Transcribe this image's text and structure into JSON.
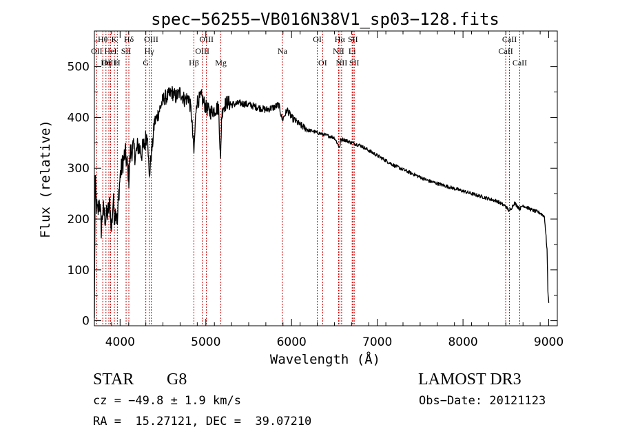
{
  "chart_data": {
    "type": "line",
    "title": "spec−56255−VB016N38V1_sp03−128.fits",
    "xlabel": "Wavelength (Å)",
    "ylabel": "Flux (relative)",
    "xlim": [
      3700,
      9100
    ],
    "ylim": [
      -10,
      570
    ],
    "xticks": [
      4000,
      5000,
      6000,
      7000,
      8000,
      9000
    ],
    "yticks": [
      0,
      100,
      200,
      300,
      400,
      500
    ],
    "grid": false,
    "series": [
      {
        "name": "spectrum",
        "x": [
          3700,
          3710,
          3720,
          3740,
          3760,
          3780,
          3800,
          3830,
          3860,
          3880,
          3900,
          3920,
          3935,
          3950,
          3968,
          3985,
          4000,
          4030,
          4060,
          4090,
          4102,
          4120,
          4150,
          4180,
          4210,
          4250,
          4290,
          4320,
          4340,
          4360,
          4380,
          4400,
          4430,
          4460,
          4490,
          4520,
          4550,
          4600,
          4650,
          4700,
          4750,
          4800,
          4830,
          4861,
          4890,
          4950,
          5000,
          5050,
          5100,
          5150,
          5172,
          5183,
          5200,
          5250,
          5300,
          5400,
          5500,
          5600,
          5700,
          5800,
          5850,
          5893,
          5950,
          6000,
          6100,
          6200,
          6300,
          6400,
          6500,
          6563,
          6570,
          6600,
          6700,
          6800,
          7000,
          7200,
          7400,
          7600,
          7800,
          8000,
          8200,
          8400,
          8498,
          8542,
          8600,
          8662,
          8700,
          8800,
          8900,
          8950,
          8980,
          8990,
          9000
        ],
        "y": [
          5,
          280,
          230,
          210,
          240,
          180,
          220,
          200,
          215,
          230,
          180,
          240,
          200,
          225,
          190,
          250,
          285,
          310,
          330,
          300,
          280,
          330,
          340,
          325,
          345,
          330,
          350,
          370,
          280,
          320,
          350,
          390,
          400,
          415,
          430,
          440,
          440,
          450,
          440,
          450,
          435,
          440,
          410,
          330,
          430,
          440,
          420,
          410,
          415,
          420,
          310,
          400,
          420,
          430,
          425,
          428,
          425,
          420,
          415,
          420,
          425,
          395,
          415,
          400,
          385,
          375,
          370,
          365,
          360,
          340,
          355,
          357,
          350,
          345,
          325,
          305,
          290,
          275,
          265,
          255,
          245,
          235,
          225,
          215,
          232,
          220,
          227,
          218,
          212,
          205,
          140,
          60,
          35
        ]
      }
    ],
    "line_markers": [
      {
        "wl": 3727,
        "label": "OII",
        "row": 1
      },
      {
        "wl": 3798,
        "label": "Hθ",
        "row": 0
      },
      {
        "wl": 3835,
        "label": "Hη",
        "row": 2
      },
      {
        "wl": 3869,
        "label": "OIII",
        "row": 2
      },
      {
        "wl": 3889,
        "label": "HeI",
        "row": 1
      },
      {
        "wl": 3933,
        "label": "K",
        "row": 0
      },
      {
        "wl": 3968,
        "label": "H",
        "row": 2
      },
      {
        "wl": 4070,
        "label": "SII",
        "row": 1
      },
      {
        "wl": 4102,
        "label": "Hδ",
        "row": 0
      },
      {
        "wl": 4300,
        "label": "G",
        "row": 2
      },
      {
        "wl": 4340,
        "label": "Hγ",
        "row": 1
      },
      {
        "wl": 4363,
        "label": "OIII",
        "row": 0
      },
      {
        "wl": 4861,
        "label": "Hβ",
        "row": 2
      },
      {
        "wl": 4959,
        "label": "OIII",
        "row": 1
      },
      {
        "wl": 5007,
        "label": "OIII",
        "row": 0
      },
      {
        "wl": 5175,
        "label": "Mg",
        "row": 2
      },
      {
        "wl": 5893,
        "label": "Na",
        "row": 1
      },
      {
        "wl": 6300,
        "label": "OI",
        "row": 0
      },
      {
        "wl": 6363,
        "label": "OI",
        "row": 2
      },
      {
        "wl": 6548,
        "label": "NII",
        "row": 1
      },
      {
        "wl": 6563,
        "label": "Hα",
        "row": 0
      },
      {
        "wl": 6584,
        "label": "NII",
        "row": 2
      },
      {
        "wl": 6707,
        "label": "Li",
        "row": 1
      },
      {
        "wl": 6716,
        "label": "SII",
        "row": 0
      },
      {
        "wl": 6731,
        "label": "SII",
        "row": 2
      },
      {
        "wl": 8498,
        "label": "CaII",
        "row": 1
      },
      {
        "wl": 8542,
        "label": "CaII",
        "row": 0
      },
      {
        "wl": 8662,
        "label": "CaII",
        "row": 2
      }
    ]
  },
  "info": {
    "object_class": "STAR",
    "subclass": "G8",
    "survey": "LAMOST DR3",
    "redshift": "cz = −49.8 ± 1.9 km/s",
    "obs_date": "Obs−Date: 20121123",
    "coords": "RA =  15.27121, DEC =  39.07210"
  },
  "colors": {
    "line_marker": "#cc0000",
    "ink": "#000000",
    "background": "#ffffff"
  }
}
